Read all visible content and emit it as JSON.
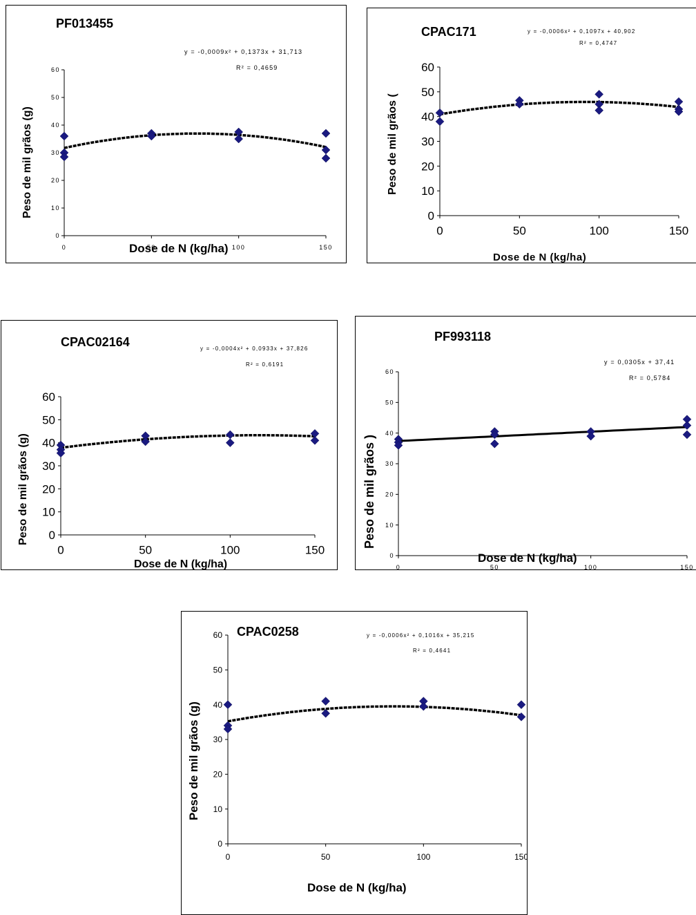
{
  "chart_data": [
    {
      "type": "scatter",
      "title": "PF013455",
      "equation": "y = -0,0009x² + 0,1373x + 31,713",
      "r2": "R² = 0,4659",
      "xlabel": "Dose de N (kg/ha)",
      "ylabel": "Peso de mil grãos (g)",
      "xlim": [
        0,
        150
      ],
      "ylim": [
        0,
        60
      ],
      "x_ticks": [
        "0",
        "50",
        "100",
        "150"
      ],
      "y_ticks": [
        "0",
        "10",
        "20",
        "30",
        "40",
        "50",
        "60"
      ],
      "trendline": {
        "type": "quadratic",
        "coef": [
          -0.0009,
          0.1373,
          31.713
        ]
      },
      "series": [
        {
          "x": [
            0,
            0,
            0,
            50,
            50,
            100,
            100,
            150,
            150,
            150
          ],
          "y": [
            36,
            30,
            28.5,
            37,
            36,
            37.5,
            35,
            37,
            31,
            28
          ]
        }
      ]
    },
    {
      "type": "scatter",
      "title": "CPAC171",
      "equation": "y = -0,0006x² + 0,1097x + 40,902",
      "r2": "R² = 0,4747",
      "xlabel": "Dose de N (kg/ha)",
      "ylabel": "Peso de mil grãos (",
      "xlim": [
        0,
        150
      ],
      "ylim": [
        0,
        60
      ],
      "x_ticks": [
        "0",
        "50",
        "100",
        "150"
      ],
      "y_ticks": [
        "0",
        "10",
        "20",
        "30",
        "40",
        "50",
        "60"
      ],
      "trendline": {
        "type": "quadratic",
        "coef": [
          -0.0006,
          0.1097,
          40.902
        ]
      },
      "series": [
        {
          "x": [
            0,
            0,
            50,
            50,
            100,
            100,
            100,
            150,
            150,
            150
          ],
          "y": [
            41.5,
            38,
            46.5,
            45,
            49,
            45,
            42.5,
            46,
            43,
            42
          ]
        }
      ]
    },
    {
      "type": "scatter",
      "title": "CPAC02164",
      "equation": "y = -0,0004x² + 0,0933x + 37,826",
      "r2": "R² = 0,6191",
      "xlabel": "Dose de N (kg/ha)",
      "ylabel": "Peso de mil grãos (g)",
      "xlim": [
        0,
        150
      ],
      "ylim": [
        0,
        60
      ],
      "x_ticks": [
        "0",
        "50",
        "100",
        "150"
      ],
      "y_ticks": [
        "0",
        "10",
        "20",
        "30",
        "40",
        "50",
        "60"
      ],
      "trendline": {
        "type": "quadratic",
        "coef": [
          -0.0004,
          0.0933,
          37.826
        ]
      },
      "series": [
        {
          "x": [
            0,
            0,
            0,
            50,
            50,
            100,
            100,
            150,
            150
          ],
          "y": [
            39,
            37,
            35.5,
            43,
            40.5,
            43.5,
            40,
            44,
            41
          ]
        }
      ]
    },
    {
      "type": "scatter",
      "title": "PF993118",
      "equation": "y = 0,0305x + 37,41",
      "r2": "R² = 0,5784",
      "xlabel": "Dose de N (kg/ha)",
      "ylabel": "Peso de mil grãos )",
      "xlim": [
        0,
        150
      ],
      "ylim": [
        0,
        60
      ],
      "x_ticks": [
        "0",
        "50",
        "100",
        "150"
      ],
      "y_ticks": [
        "0",
        "10",
        "20",
        "30",
        "40",
        "50",
        "60"
      ],
      "trendline": {
        "type": "linear",
        "coef": [
          0,
          0.0305,
          37.41
        ]
      },
      "series": [
        {
          "x": [
            0,
            0,
            0,
            50,
            50,
            50,
            100,
            100,
            150,
            150,
            150
          ],
          "y": [
            38,
            37,
            36,
            40.5,
            39.5,
            36.5,
            40.5,
            39,
            44.5,
            42.5,
            39.5
          ]
        }
      ]
    },
    {
      "type": "scatter",
      "title": "CPAC0258",
      "equation": "y = -0,0006x² + 0,1016x + 35,215",
      "r2": "R² = 0,4641",
      "xlabel": "Dose de N (kg/ha)",
      "ylabel": "Peso de mil grãos (g)",
      "xlim": [
        0,
        150
      ],
      "ylim": [
        0,
        60
      ],
      "x_ticks": [
        "0",
        "50",
        "100",
        "150"
      ],
      "y_ticks": [
        "0",
        "10",
        "20",
        "30",
        "40",
        "50",
        "60"
      ],
      "trendline": {
        "type": "quadratic",
        "coef": [
          -0.0006,
          0.1016,
          35.215
        ]
      },
      "series": [
        {
          "x": [
            0,
            0,
            0,
            50,
            50,
            100,
            100,
            150,
            150
          ],
          "y": [
            40,
            34,
            33,
            41,
            37.5,
            41,
            39.5,
            40,
            36.5
          ]
        }
      ]
    }
  ],
  "colors": {
    "marker": "#1a1a80",
    "trendline": "#000000"
  }
}
